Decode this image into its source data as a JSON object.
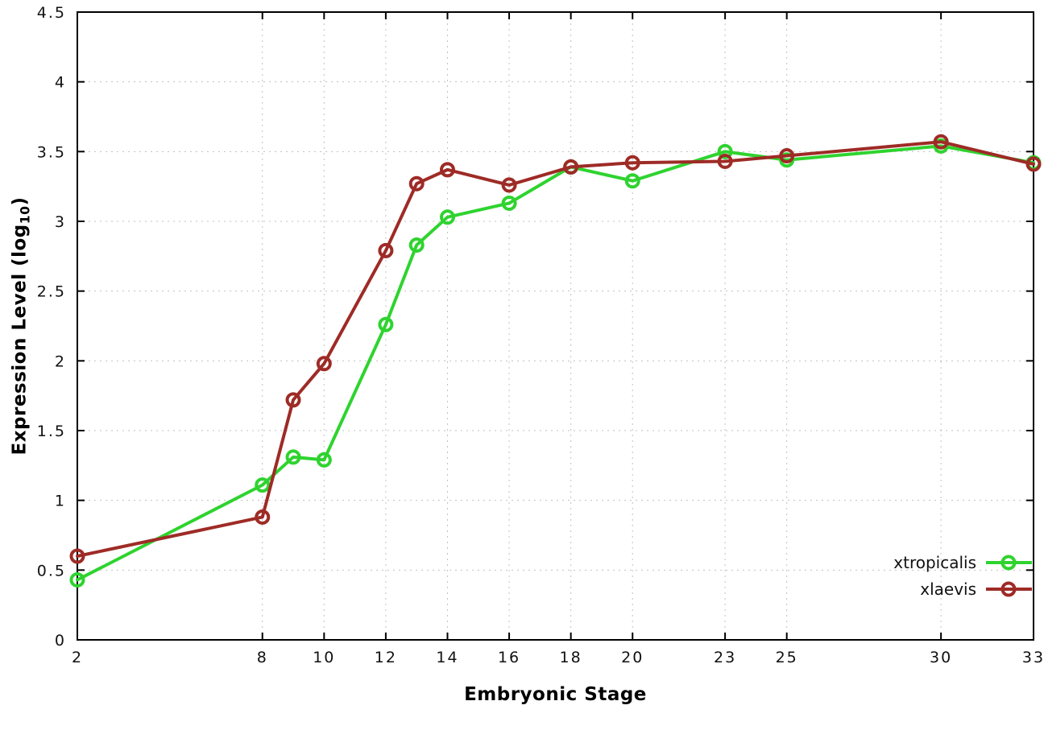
{
  "chart_data": {
    "type": "line",
    "title": "",
    "xlabel": "Embryonic Stage",
    "ylabel_main": "Expression Level (log",
    "ylabel_sub": "10",
    "ylabel_end": ")",
    "xlim": [
      2,
      33
    ],
    "ylim": [
      0,
      4.5
    ],
    "x_ticks": [
      2,
      8,
      10,
      12,
      14,
      16,
      18,
      20,
      23,
      25,
      30,
      33
    ],
    "y_ticks": [
      0,
      0.5,
      1,
      1.5,
      2,
      2.5,
      3,
      3.5,
      4,
      4.5
    ],
    "grid": true,
    "legend_position": "bottom-right",
    "x": [
      2,
      8,
      9,
      10,
      12,
      13,
      14,
      16,
      18,
      20,
      23,
      25,
      30,
      33
    ],
    "series": [
      {
        "name": "xtropicalis",
        "color": "#2fd32f",
        "values": [
          0.43,
          1.11,
          1.31,
          1.29,
          2.26,
          2.83,
          3.03,
          3.13,
          3.39,
          3.29,
          3.5,
          3.44,
          3.54,
          3.42
        ]
      },
      {
        "name": "xlaevis",
        "color": "#9e2b26",
        "values": [
          0.6,
          0.88,
          1.72,
          1.98,
          2.79,
          3.27,
          3.37,
          3.26,
          3.39,
          3.42,
          3.43,
          3.47,
          3.57,
          3.41
        ]
      }
    ],
    "grid_color": "#c0c0c0",
    "axis_color": "#000000",
    "background_color": "#ffffff"
  }
}
